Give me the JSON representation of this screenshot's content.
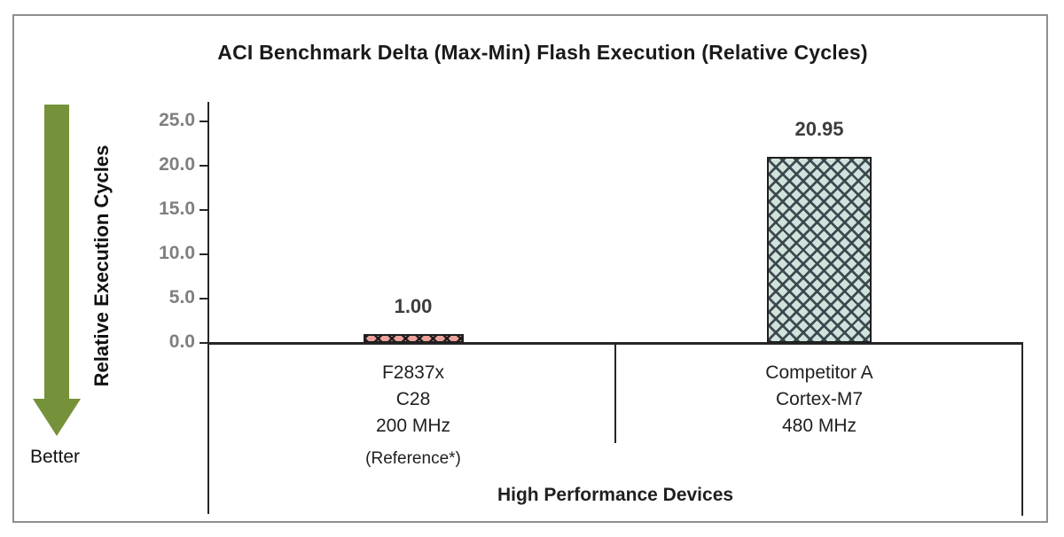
{
  "title": "ACI Benchmark Delta (Max-Min) Flash Execution (Relative Cycles)",
  "y_axis": {
    "label": "Relative Execution Cycles",
    "ticks": [
      "25.0",
      "20.0",
      "15.0",
      "10.0",
      "5.0",
      "0.0"
    ]
  },
  "better_label": "Better",
  "chart_data": {
    "type": "bar",
    "title": "ACI Benchmark Delta (Max-Min) Flash Execution (Relative Cycles)",
    "ylabel": "Relative Execution Cycles",
    "xlabel": "High Performance Devices",
    "ylim": [
      0,
      25
    ],
    "ytick_step": 5,
    "grid": false,
    "legend": "none",
    "categories": [
      [
        "F2837x",
        "C28",
        "200 MHz",
        "(Reference*)"
      ],
      [
        "Competitor A",
        "Cortex-M7",
        "480 MHz"
      ]
    ],
    "values": [
      1.0,
      20.95
    ],
    "value_labels": [
      "1.00",
      "20.95"
    ],
    "bar_fill_colors": [
      "#eca19b",
      "#cfe3dc"
    ],
    "bar_hatch": "diagonal-crosshatch",
    "annotation": "Better (lower is better, green down arrow)"
  },
  "colors": {
    "arrow": "#75923a",
    "axis": "#262626",
    "tick_label": "#7f7f7f",
    "value_label": "#3d3d3d",
    "border": "#8f8f8f",
    "bar1_fill": "#eca19b",
    "bar2_fill": "#cfe3dc"
  }
}
